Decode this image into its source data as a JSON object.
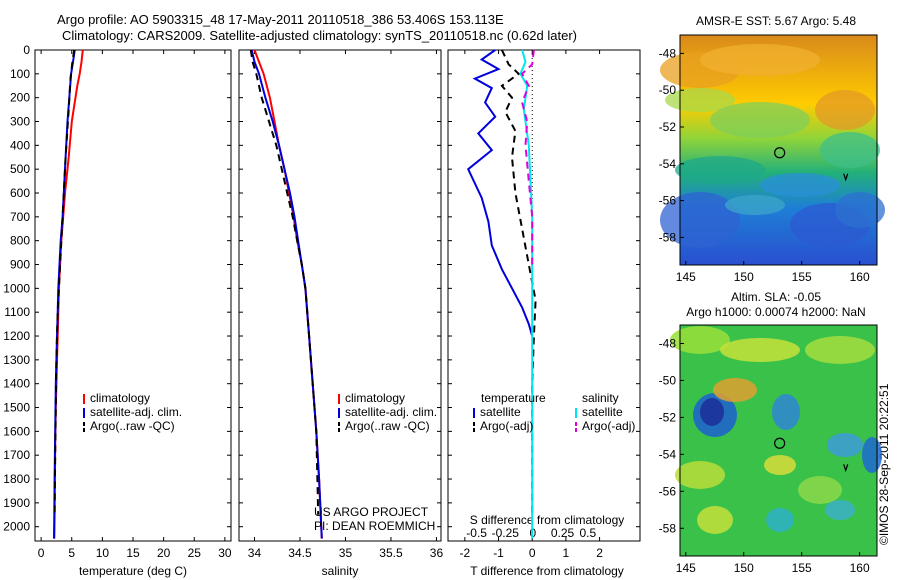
{
  "header": {
    "line1": "Argo profile: AO 5903315_48 17-May-2011 20110518_386 53.406S 153.113E",
    "line2": "Climatology: CARS2009. Satellite-adjusted climatology: synTS_20110518.nc (0.62d later)"
  },
  "footer_side": "©IMOS 28-Sep-2011 20:22:51",
  "colors": {
    "climatology": "#ff0000",
    "satellite": "#0000dd",
    "argo": "#000000",
    "sal_satellite": "#00e5ee",
    "sal_argo": "#dd00dd"
  },
  "chart_data": [
    {
      "type": "line",
      "name": "temperature profile",
      "xlabel": "temperature (deg C)",
      "ylabel": "",
      "xlim": [
        -1,
        31
      ],
      "ylim": [
        2060,
        0
      ],
      "xticks": [
        0,
        5,
        10,
        15,
        20,
        25,
        30
      ],
      "yticks": [
        0,
        100,
        200,
        300,
        400,
        500,
        600,
        700,
        800,
        900,
        1000,
        1100,
        1200,
        1300,
        1400,
        1500,
        1600,
        1700,
        1800,
        1900,
        2000
      ],
      "legend": [
        "climatology",
        "satellite-adj. clim.",
        "Argo(..raw -QC)"
      ],
      "legend_position": "lower-center",
      "series": [
        {
          "name": "climatology",
          "style": "solid",
          "color": "#ff0000",
          "x": [
            6.8,
            6.6,
            6.3,
            5.9,
            5.0,
            4.5,
            3.9,
            3.6,
            3.3,
            3.1,
            2.9,
            2.8,
            2.7,
            2.6,
            2.5,
            2.4,
            2.3,
            2.25,
            2.2,
            2.15
          ],
          "y": [
            0,
            50,
            100,
            150,
            300,
            450,
            600,
            700,
            800,
            900,
            1000,
            1100,
            1200,
            1300,
            1400,
            1500,
            1650,
            1800,
            1950,
            2050
          ]
        },
        {
          "name": "satellite-adj. clim.",
          "style": "solid",
          "color": "#0000dd",
          "x": [
            5.5,
            5.2,
            4.9,
            4.6,
            4.3,
            4.0,
            3.7,
            3.5,
            3.2,
            3.0,
            2.8,
            2.7,
            2.6,
            2.5,
            2.4,
            2.3,
            2.2,
            2.15,
            2.1
          ],
          "y": [
            0,
            50,
            100,
            200,
            300,
            450,
            600,
            700,
            800,
            900,
            1000,
            1100,
            1200,
            1300,
            1400,
            1600,
            1800,
            1950,
            2050
          ]
        },
        {
          "name": "Argo(..raw -QC)",
          "style": "dashed",
          "color": "#000000",
          "x": [
            5.4,
            5.1,
            4.8,
            4.5,
            4.0,
            3.7,
            3.4,
            3.1,
            2.9,
            2.7,
            2.6,
            2.5,
            2.4,
            2.3,
            2.2
          ],
          "y": [
            0,
            50,
            120,
            250,
            450,
            600,
            750,
            900,
            1000,
            1100,
            1200,
            1300,
            1500,
            1700,
            1950
          ]
        }
      ],
      "annotations": []
    },
    {
      "type": "line",
      "name": "salinity profile",
      "xlabel": "salinity",
      "ylabel": "",
      "xlim": [
        33.83,
        36.05
      ],
      "ylim": [
        2060,
        0
      ],
      "xticks": [
        34,
        34.5,
        35,
        35.5,
        36
      ],
      "legend": [
        "climatology",
        "satellite-adj. clim.",
        "Argo(..raw -QC)"
      ],
      "legend_position": "lower-center",
      "series": [
        {
          "name": "climatology",
          "style": "solid",
          "color": "#ff0000",
          "x": [
            34.0,
            34.05,
            34.1,
            34.17,
            34.22,
            34.27,
            34.33,
            34.38,
            34.43,
            34.47,
            34.52,
            34.56,
            34.6,
            34.64,
            34.68,
            34.71,
            34.74
          ],
          "y": [
            0,
            50,
            100,
            200,
            300,
            400,
            500,
            600,
            700,
            800,
            900,
            1000,
            1200,
            1400,
            1600,
            1800,
            2050
          ]
        },
        {
          "name": "satellite-adj. clim.",
          "style": "solid",
          "color": "#0000dd",
          "x": [
            33.97,
            34.0,
            34.05,
            34.12,
            34.2,
            34.27,
            34.33,
            34.39,
            34.44,
            34.48,
            34.52,
            34.56,
            34.6,
            34.64,
            34.68,
            34.71,
            34.74
          ],
          "y": [
            0,
            50,
            100,
            200,
            300,
            400,
            500,
            600,
            700,
            800,
            900,
            1000,
            1200,
            1400,
            1600,
            1800,
            2050
          ]
        },
        {
          "name": "Argo(..raw -QC)",
          "style": "dashed",
          "color": "#000000",
          "x": [
            33.96,
            33.98,
            34.02,
            34.08,
            34.16,
            34.24,
            34.3,
            34.36,
            34.42,
            34.47,
            34.52,
            34.56,
            34.6,
            34.64,
            34.68,
            34.7
          ],
          "y": [
            0,
            50,
            100,
            200,
            300,
            400,
            500,
            600,
            700,
            800,
            900,
            1000,
            1200,
            1400,
            1600,
            1950
          ]
        }
      ],
      "annotations": [
        "US ARGO PROJECT",
        "PI: DEAN ROEMMICH"
      ]
    },
    {
      "type": "line",
      "name": "difference from climatology",
      "xlabel": "T difference from climatology",
      "xlabel_top": "S difference from climatology",
      "ylabel": "",
      "xlim": [
        -2.5,
        3.2
      ],
      "ylim": [
        2060,
        0
      ],
      "xticks": [
        -2,
        -1,
        0,
        1,
        2
      ],
      "xticks_S": [
        "-0.5",
        "-0.25",
        "0",
        "0.25",
        "0.5"
      ],
      "legend_temperature": {
        "title": "temperature",
        "entries": [
          "satellite",
          "Argo(-adj)"
        ]
      },
      "legend_salinity": {
        "title": "salinity",
        "entries": [
          "satellite",
          "Argo(-adj)"
        ]
      },
      "series": [
        {
          "name": "temperature satellite",
          "style": "solid",
          "color": "#0000dd",
          "x": [
            -1.1,
            -1.5,
            -1.0,
            -1.7,
            -1.2,
            -1.4,
            -1.1,
            -1.6,
            -1.2,
            -1.9,
            -1.5,
            -1.3,
            -1.2,
            -0.9,
            -0.6,
            -0.3,
            -0.1,
            0
          ],
          "y": [
            0,
            40,
            80,
            120,
            160,
            220,
            280,
            350,
            420,
            500,
            620,
            720,
            820,
            920,
            1000,
            1080,
            1150,
            1200
          ]
        },
        {
          "name": "temperature Argo(-adj)",
          "style": "dashed",
          "color": "#000000",
          "x": [
            -0.9,
            -0.7,
            -0.4,
            -0.9,
            -0.6,
            -0.8,
            -0.5,
            -0.6,
            -0.5,
            -0.3,
            -0.1,
            0.1,
            0.05,
            0,
            0
          ],
          "y": [
            0,
            60,
            100,
            150,
            200,
            260,
            340,
            450,
            600,
            750,
            900,
            1050,
            1200,
            1400,
            1950
          ]
        },
        {
          "name": "salinity satellite",
          "style": "solid",
          "color": "#00e5ee",
          "x": [
            -0.3,
            -0.2,
            -0.35,
            -0.15,
            -0.25,
            -0.1,
            -0.05,
            0,
            0,
            0
          ],
          "y": [
            0,
            50,
            100,
            150,
            250,
            400,
            550,
            700,
            1000,
            2050
          ]
        },
        {
          "name": "salinity Argo(-adj)",
          "style": "dashed",
          "color": "#dd00dd",
          "x": [
            0.05,
            0,
            -0.3,
            -0.1,
            -0.3,
            -0.15,
            -0.2,
            -0.1,
            0,
            0
          ],
          "y": [
            0,
            60,
            100,
            150,
            220,
            300,
            400,
            550,
            700,
            900
          ]
        }
      ]
    },
    {
      "type": "heatmap",
      "name": "AMSR-E SST map",
      "title": "AMSR-E SST: 5.67 Argo: 5.48",
      "xlim": [
        144.5,
        161.5
      ],
      "ylim": [
        -59.5,
        -47
      ],
      "xticks": [
        145,
        150,
        155,
        160
      ],
      "yticks": [
        -48,
        -50,
        -52,
        -54,
        -56,
        -58
      ],
      "marker": {
        "lon": 153.1,
        "lat": -53.4
      },
      "float_marker": {
        "lon": 158.8,
        "lat": -54.7
      }
    },
    {
      "type": "heatmap",
      "name": "Altimetry SLA map",
      "title": "Altim. SLA: -0.05",
      "subtitle": "Argo h1000: 0.00074 h2000: NaN",
      "xlim": [
        144.5,
        161.5
      ],
      "ylim": [
        -59.5,
        -47
      ],
      "xticks": [
        145,
        150,
        155,
        160
      ],
      "yticks": [
        -48,
        -50,
        -52,
        -54,
        -56,
        -58
      ],
      "marker": {
        "lon": 153.1,
        "lat": -53.4
      },
      "float_marker": {
        "lon": 158.8,
        "lat": -54.7
      }
    }
  ]
}
